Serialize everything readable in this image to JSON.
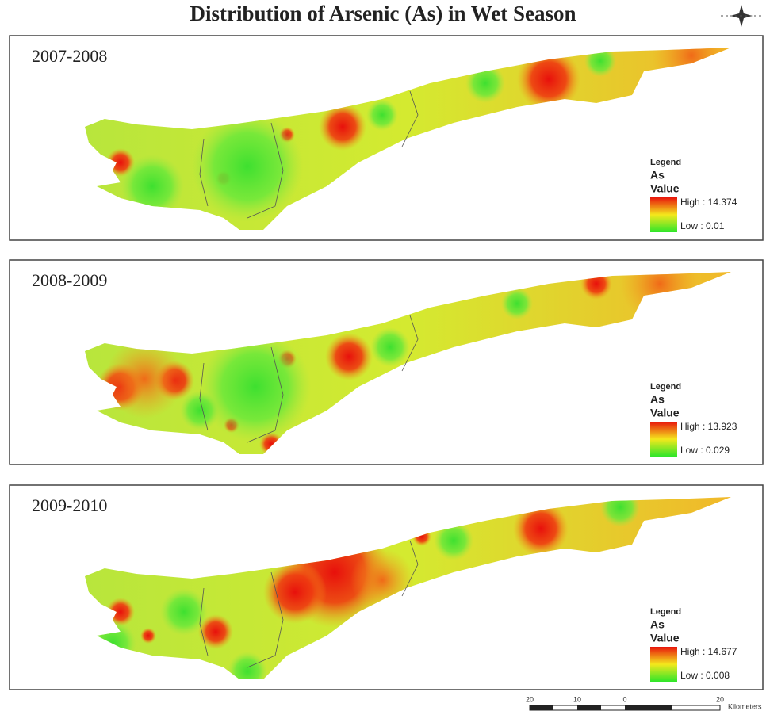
{
  "title": "Distribution of Arsenic (As) in Wet Season",
  "panels": [
    {
      "label": "2007-2008",
      "legend": {
        "title": "Legend",
        "field": "As",
        "subtitle": "Value",
        "high": "High : 14.374",
        "low": "Low : 0.01"
      }
    },
    {
      "label": "2008-2009",
      "legend": {
        "title": "Legend",
        "field": "As",
        "subtitle": "Value",
        "high": "High : 13.923",
        "low": "Low : 0.029"
      }
    },
    {
      "label": "2009-2010",
      "legend": {
        "title": "Legend",
        "field": "As",
        "subtitle": "Value",
        "high": "High : 14.677",
        "low": "Low : 0.008"
      }
    }
  ],
  "scale_bar": {
    "labels": [
      "20",
      "10",
      "0",
      "20"
    ],
    "unit": "Kilometers"
  }
}
